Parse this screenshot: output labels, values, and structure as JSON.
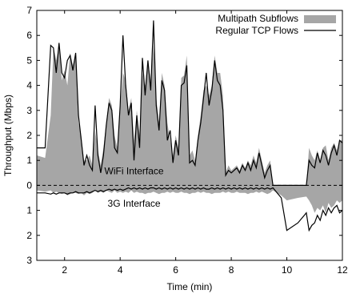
{
  "chart_data": {
    "type": "area",
    "xlabel": "Time (min)",
    "ylabel": "Throughput (Mbps)",
    "xlim": [
      1,
      12
    ],
    "ylim": [
      -3,
      7
    ],
    "x_ticks": [
      2,
      4,
      6,
      8,
      10,
      12
    ],
    "y_ticks": [
      {
        "value": 7,
        "label": "7"
      },
      {
        "value": 6,
        "label": "6"
      },
      {
        "value": 5,
        "label": "5"
      },
      {
        "value": 4,
        "label": "4"
      },
      {
        "value": 3,
        "label": "3"
      },
      {
        "value": 2,
        "label": "2"
      },
      {
        "value": 1,
        "label": "1"
      },
      {
        "value": 0,
        "label": "0"
      },
      {
        "value": -1,
        "label": "1"
      },
      {
        "value": -2,
        "label": "2"
      },
      {
        "value": -3,
        "label": "3"
      }
    ],
    "zero_line": "dashed",
    "grid": false,
    "legend_position": "top-right",
    "annotations": {
      "wifi": "WiFi Interface",
      "threeg": "3G Interface"
    },
    "series": [
      {
        "name": "Multipath Subflows",
        "style": "filled-area",
        "color": "#a6a6a6",
        "x": [
          1.0,
          1.3,
          1.5,
          1.6,
          1.7,
          1.8,
          1.9,
          2.0,
          2.1,
          2.2,
          2.3,
          2.4,
          2.5,
          2.6,
          2.7,
          2.8,
          2.9,
          3.0,
          3.1,
          3.2,
          3.3,
          3.4,
          3.5,
          3.6,
          3.7,
          3.8,
          3.9,
          4.0,
          4.1,
          4.2,
          4.3,
          4.4,
          4.5,
          4.6,
          4.7,
          4.8,
          4.9,
          5.0,
          5.1,
          5.2,
          5.3,
          5.4,
          5.5,
          5.6,
          5.7,
          5.8,
          5.9,
          6.0,
          6.1,
          6.2,
          6.3,
          6.4,
          6.5,
          6.6,
          6.7,
          6.8,
          6.9,
          7.0,
          7.1,
          7.2,
          7.3,
          7.4,
          7.5,
          7.6,
          7.7,
          7.8,
          7.9,
          8.0,
          8.1,
          8.2,
          8.3,
          8.4,
          8.5,
          8.6,
          8.7,
          8.8,
          8.9,
          9.0,
          9.1,
          9.2,
          9.3,
          9.4,
          9.5,
          9.8,
          10.0,
          10.4,
          10.7,
          10.8,
          10.9,
          11.0,
          11.1,
          11.2,
          11.3,
          11.4,
          11.5,
          11.6,
          11.7,
          11.8,
          11.9,
          12.0
        ],
        "values": [
          1.2,
          1.1,
          2.8,
          5.5,
          5.0,
          5.6,
          4.2,
          4.6,
          4.0,
          5.3,
          4.8,
          5.3,
          2.5,
          2.0,
          1.0,
          1.0,
          1.2,
          0.8,
          2.2,
          1.4,
          0.8,
          1.5,
          2.5,
          3.5,
          3.2,
          2.0,
          1.5,
          3.0,
          4.5,
          4.2,
          3.0,
          3.5,
          1.8,
          3.0,
          2.0,
          4.5,
          4.0,
          5.0,
          4.2,
          5.6,
          3.5,
          2.5,
          4.5,
          4.0,
          2.5,
          1.8,
          1.2,
          2.0,
          1.5,
          4.3,
          4.4,
          5.2,
          1.2,
          1.4,
          1.0,
          2.0,
          2.8,
          3.8,
          4.0,
          3.6,
          4.0,
          5.2,
          4.5,
          4.5,
          3.6,
          0.5,
          0.8,
          0.6,
          0.7,
          0.8,
          0.6,
          0.9,
          0.7,
          1.0,
          0.8,
          1.2,
          0.9,
          1.5,
          1.0,
          0.5,
          0.8,
          1.0,
          0.0,
          0.0,
          0.0,
          0.0,
          0.0,
          1.5,
          1.2,
          1.0,
          1.4,
          1.0,
          1.5,
          1.6,
          1.0,
          1.5,
          1.7,
          1.4,
          1.8,
          1.8
        ],
        "lower": [
          -0.2,
          -0.25,
          -0.2,
          -0.3,
          -0.25,
          -0.3,
          -0.35,
          -0.3,
          -0.4,
          -0.35,
          -0.3,
          -0.3,
          -0.35,
          -0.3,
          -0.4,
          -0.3,
          -0.35,
          -0.3,
          -0.2,
          -0.3,
          -0.25,
          -0.3,
          -0.2,
          -0.25,
          -0.3,
          -0.2,
          -0.3,
          -0.25,
          -0.3,
          -0.25,
          -0.3,
          -0.2,
          -0.3,
          -0.25,
          -0.3,
          -0.3,
          -0.35,
          -0.3,
          -0.3,
          -0.25,
          -0.3,
          -0.35,
          -0.3,
          -0.3,
          -0.25,
          -0.3,
          -0.25,
          -0.3,
          -0.3,
          -0.25,
          -0.3,
          -0.3,
          -0.35,
          -0.3,
          -0.3,
          -0.25,
          -0.3,
          -0.25,
          -0.3,
          -0.3,
          -0.35,
          -0.3,
          -0.3,
          -0.3,
          -0.25,
          -0.3,
          -0.25,
          -0.3,
          -0.3,
          -0.25,
          -0.3,
          -0.3,
          -0.3,
          -0.35,
          -0.3,
          -0.3,
          -0.25,
          -0.3,
          -0.25,
          -0.3,
          -0.35,
          -0.3,
          -0.2,
          -0.4,
          -0.6,
          -0.5,
          -0.45,
          -0.6,
          -0.8,
          -1.1,
          -0.9,
          -1.0,
          -0.8,
          -1.1,
          -0.7,
          -0.9,
          -0.8,
          -0.6,
          -0.7,
          -0.6
        ]
      },
      {
        "name": "Regular TCP Flows",
        "style": "line",
        "color": "#000000",
        "x": [
          1.0,
          1.3,
          1.5,
          1.6,
          1.7,
          1.8,
          1.9,
          2.0,
          2.1,
          2.2,
          2.3,
          2.4,
          2.5,
          2.6,
          2.7,
          2.8,
          2.9,
          3.0,
          3.1,
          3.2,
          3.3,
          3.4,
          3.5,
          3.6,
          3.7,
          3.8,
          3.9,
          4.0,
          4.1,
          4.2,
          4.3,
          4.4,
          4.5,
          4.6,
          4.7,
          4.8,
          4.9,
          5.0,
          5.1,
          5.2,
          5.3,
          5.4,
          5.5,
          5.6,
          5.7,
          5.8,
          5.9,
          6.0,
          6.1,
          6.2,
          6.3,
          6.4,
          6.5,
          6.6,
          6.7,
          6.8,
          6.9,
          7.0,
          7.1,
          7.2,
          7.3,
          7.4,
          7.5,
          7.6,
          7.7,
          7.8,
          7.9,
          8.0,
          8.1,
          8.2,
          8.3,
          8.4,
          8.5,
          8.6,
          8.7,
          8.8,
          8.9,
          9.0,
          9.1,
          9.2,
          9.3,
          9.4,
          9.5,
          9.8,
          10.0,
          10.4,
          10.7,
          10.8,
          10.9,
          11.0,
          11.1,
          11.2,
          11.3,
          11.4,
          11.5,
          11.6,
          11.7,
          11.8,
          11.9,
          12.0
        ],
        "values": [
          1.5,
          1.5,
          5.6,
          5.5,
          4.5,
          5.7,
          4.5,
          4.3,
          5.0,
          5.2,
          4.6,
          5.3,
          2.8,
          1.8,
          0.8,
          1.2,
          0.8,
          0.6,
          3.2,
          1.2,
          0.5,
          1.2,
          2.4,
          3.3,
          3.0,
          1.5,
          1.3,
          3.2,
          6.0,
          4.0,
          2.8,
          3.3,
          1.0,
          2.8,
          1.5,
          5.1,
          3.6,
          5.0,
          3.8,
          6.6,
          3.2,
          2.2,
          4.2,
          3.8,
          1.8,
          2.2,
          0.9,
          1.8,
          1.2,
          4.0,
          4.1,
          4.8,
          0.9,
          1.0,
          0.8,
          1.8,
          2.5,
          3.5,
          4.5,
          3.2,
          3.8,
          5.0,
          4.2,
          4.0,
          3.0,
          0.4,
          0.6,
          0.5,
          0.6,
          0.7,
          0.5,
          0.8,
          0.6,
          0.9,
          0.6,
          1.0,
          0.7,
          1.3,
          0.8,
          0.3,
          0.6,
          0.8,
          0.0,
          0.0,
          0.0,
          0.0,
          0.0,
          1.0,
          0.8,
          0.7,
          1.3,
          0.9,
          1.4,
          1.2,
          0.8,
          1.3,
          1.6,
          1.2,
          1.8,
          1.7
        ],
        "lower": [
          -0.3,
          -0.3,
          -0.35,
          -0.3,
          -0.35,
          -0.3,
          -0.3,
          -0.3,
          -0.35,
          -0.3,
          -0.3,
          -0.25,
          -0.3,
          -0.3,
          -0.3,
          -0.25,
          -0.3,
          -0.25,
          -0.2,
          -0.25,
          -0.2,
          -0.25,
          -0.2,
          -0.15,
          -0.2,
          -0.15,
          -0.2,
          -0.15,
          -0.2,
          -0.15,
          -0.1,
          -0.15,
          -0.1,
          -0.15,
          -0.1,
          -0.15,
          -0.1,
          -0.15,
          -0.1,
          -0.1,
          -0.15,
          -0.1,
          -0.15,
          -0.1,
          -0.15,
          -0.1,
          -0.15,
          -0.1,
          -0.15,
          -0.1,
          -0.15,
          -0.1,
          -0.15,
          -0.1,
          -0.15,
          -0.1,
          -0.15,
          -0.1,
          -0.15,
          -0.15,
          -0.1,
          -0.15,
          -0.1,
          -0.15,
          -0.1,
          -0.15,
          -0.1,
          -0.15,
          -0.1,
          -0.15,
          -0.1,
          -0.15,
          -0.1,
          -0.15,
          -0.1,
          -0.15,
          -0.1,
          -0.15,
          -0.1,
          -0.15,
          -0.1,
          -0.15,
          -0.1,
          -0.5,
          -1.8,
          -1.5,
          -1.1,
          -1.8,
          -1.6,
          -1.5,
          -1.2,
          -1.4,
          -1.0,
          -1.2,
          -0.9,
          -1.1,
          -0.9,
          -0.8,
          -1.1,
          -1.0
        ]
      }
    ]
  }
}
